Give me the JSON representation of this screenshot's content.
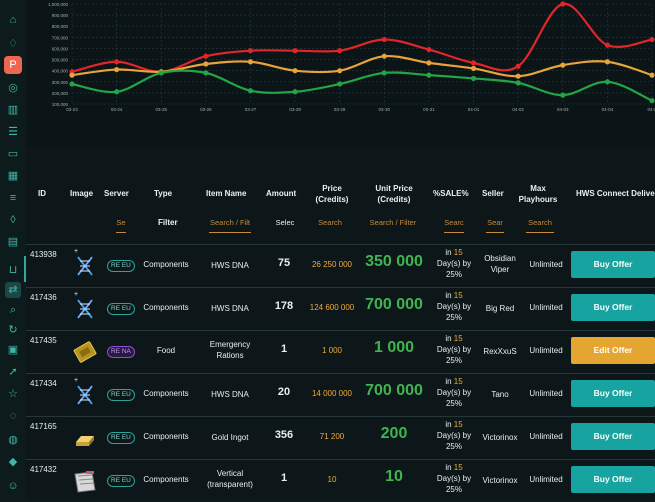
{
  "sidebar": {
    "icons": [
      "home-icon",
      "handshake-icon",
      "active-app-icon",
      "coins-icon",
      "bank-icon",
      "database-icon",
      "card-icon",
      "chart-icon",
      "list-icon",
      "shield-icon",
      "calendar-icon",
      "gift-icon",
      "cube-icon",
      "cart-icon",
      "transfer-icon",
      "search-icon",
      "history-icon",
      "rocket-icon",
      "star-icon",
      "chat-icon",
      "globe-icon",
      "drop-icon",
      "user-icon"
    ]
  },
  "chart_data": {
    "type": "line",
    "x": [
      "03-23",
      "03-24",
      "03-25",
      "03-26",
      "03-27",
      "03-28",
      "03-29",
      "03-30",
      "03-31",
      "04-01",
      "04-02",
      "04-03",
      "04-04",
      "04-0"
    ],
    "y_ticks": [
      "100,000",
      "200,000",
      "300,000",
      "400,000",
      "500,000",
      "600,000",
      "700,000",
      "800,000",
      "900,000",
      "1,000,000"
    ],
    "ylim": [
      100000,
      1000000
    ],
    "grid": true,
    "series": [
      {
        "color": "#e0262b",
        "values": [
          390000,
          480000,
          390000,
          530000,
          580000,
          580000,
          580000,
          680000,
          590000,
          470000,
          440000,
          1000000,
          630000,
          680000
        ]
      },
      {
        "color": "#e8a43a",
        "values": [
          360000,
          410000,
          390000,
          460000,
          480000,
          400000,
          400000,
          530000,
          470000,
          420000,
          350000,
          450000,
          480000,
          360000
        ]
      },
      {
        "color": "#23a447",
        "values": [
          280000,
          210000,
          380000,
          380000,
          220000,
          210000,
          280000,
          380000,
          360000,
          330000,
          290000,
          180000,
          300000,
          130000
        ]
      }
    ]
  },
  "table": {
    "headers": {
      "id": "ID",
      "image": "Image",
      "server": "Server",
      "type": "Type",
      "item_name": "Item Name",
      "amount": "Amount",
      "price_1": "Price",
      "price_2": "(Credits)",
      "unit_1": "Unit Price",
      "unit_2": "(Credits)",
      "sale": "%SALE%",
      "seller": "Seller",
      "max_1": "Max",
      "max_2": "Playhours",
      "action": "HWS Connect Delivery"
    },
    "filters": {
      "server": "Se",
      "type": "Filter",
      "item_name": "Search / Filt",
      "amount": "Selec",
      "price": "Search",
      "unit": "Search / Filter",
      "sale": "Searc",
      "seller": "Sear",
      "max": "Search"
    },
    "rows": [
      {
        "id": "413938",
        "plus": "+",
        "server": "RE EU",
        "type": "Components",
        "name": "HWS DNA",
        "amount": "75",
        "price": "26 250 000",
        "unit": "350 000",
        "sale_a": "in ",
        "sale_b": "15",
        "sale_c": "Day(s) by",
        "sale_d": "25%",
        "seller": "Obsidian Viper",
        "max": "Unlimited",
        "action": "Buy Offer"
      },
      {
        "id": "417436",
        "plus": "+",
        "server": "RE EU",
        "type": "Components",
        "name": "HWS DNA",
        "amount": "178",
        "price": "124 600 000",
        "unit": "700 000",
        "sale_a": "in ",
        "sale_b": "15",
        "sale_c": "Day(s) by",
        "sale_d": "25%",
        "seller": "Big Red",
        "max": "Unlimited",
        "action": "Buy Offer"
      },
      {
        "id": "417435",
        "plus": "",
        "server": "RE NA",
        "type": "Food",
        "name": "Emergency Rations",
        "amount": "1",
        "price": "1 000",
        "unit": "1 000",
        "sale_a": "in ",
        "sale_b": "15",
        "sale_c": "Day(s) by",
        "sale_d": "25%",
        "seller": "RexXxuS",
        "max": "Unlimited",
        "action": "Edit Offer"
      },
      {
        "id": "417434",
        "plus": "+",
        "server": "RE EU",
        "type": "Components",
        "name": "HWS DNA",
        "amount": "20",
        "price": "14 000 000",
        "unit": "700 000",
        "sale_a": "in ",
        "sale_b": "15",
        "sale_c": "Day(s) by",
        "sale_d": "25%",
        "seller": "Tano",
        "max": "Unlimited",
        "action": "Buy Offer"
      },
      {
        "id": "417165",
        "plus": "",
        "server": "RE EU",
        "type": "Components",
        "name": "Gold Ingot",
        "amount": "356",
        "price": "71 200",
        "unit": "200",
        "sale_a": "in ",
        "sale_b": "15",
        "sale_c": "Day(s) by",
        "sale_d": "25%",
        "seller": "Victorinox",
        "max": "Unlimited",
        "action": "Buy Offer"
      },
      {
        "id": "417432",
        "plus": "",
        "server": "RE EU",
        "type": "Components",
        "name": "Vertical (transparent)",
        "amount": "1",
        "price": "10",
        "unit": "10",
        "sale_a": "in ",
        "sale_b": "15",
        "sale_c": "Day(s) by",
        "sale_d": "25%",
        "seller": "Victorinox",
        "max": "Unlimited",
        "action": "Buy Offer"
      }
    ]
  }
}
